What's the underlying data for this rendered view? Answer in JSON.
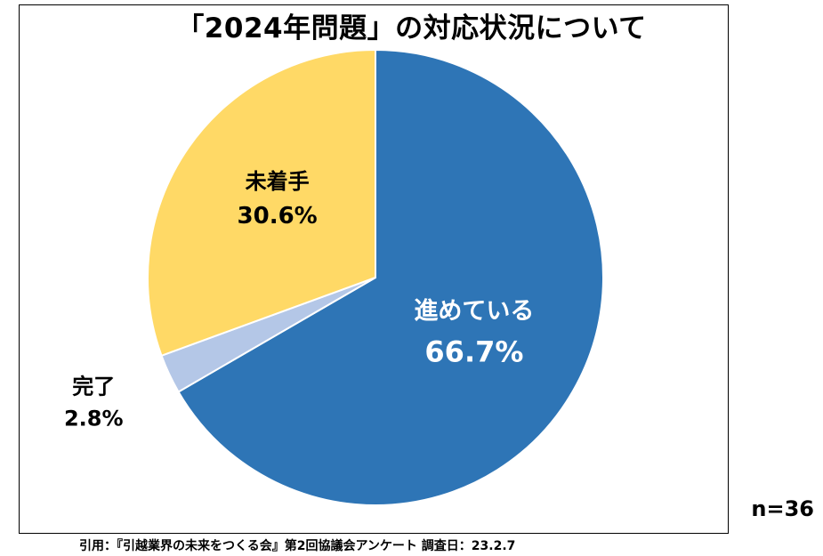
{
  "title": "「2024年問題」の対応状況について",
  "sample_size": "n=36",
  "source": "引用：『引越業界の未来をつくる会』第2回協議会アンケート 調査日：23.2.7",
  "colors": {
    "in_progress": "#2E75B6",
    "complete": "#B4C7E7",
    "not_started": "#FFD966"
  },
  "chart_data": {
    "type": "pie",
    "title": "「2024年問題」の対応状況について",
    "slices": [
      {
        "label": "進めている",
        "value": 66.7,
        "value_label": "66.7%",
        "color": "#2E75B6"
      },
      {
        "label": "完了",
        "value": 2.8,
        "value_label": "2.8%",
        "color": "#B4C7E7"
      },
      {
        "label": "未着手",
        "value": 30.6,
        "value_label": "30.6%",
        "color": "#FFD966"
      }
    ]
  }
}
